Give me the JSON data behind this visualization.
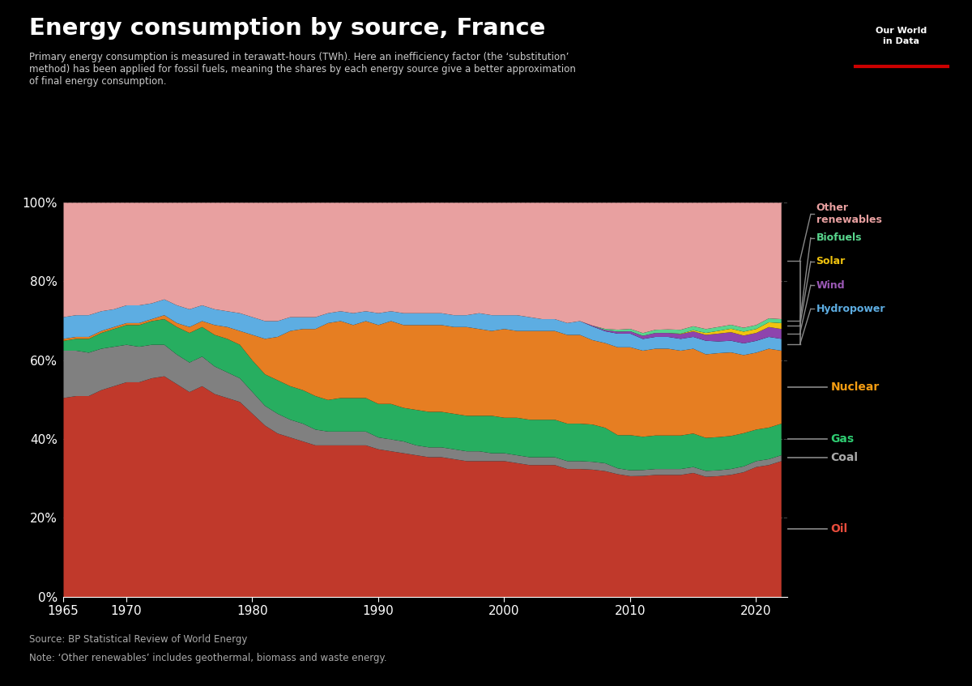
{
  "title": "Energy consumption by source, France",
  "subtitle": "Primary energy consumption is measured in terawatt-hours (TWh). Here an inefficiency factor (the ‘substitution’\nmethod) has been applied for fossil fuels, meaning the shares by each energy source give a better approximation\nof final energy consumption.",
  "source_text": "Source: BP Statistical Review of World Energy",
  "note_text": "Note: ‘Other renewables’ includes geothermal, biomass and waste energy.",
  "background_color": "#000000",
  "text_color": "#ffffff",
  "years": [
    1965,
    1966,
    1967,
    1968,
    1969,
    1970,
    1971,
    1972,
    1973,
    1974,
    1975,
    1976,
    1977,
    1978,
    1979,
    1980,
    1981,
    1982,
    1983,
    1984,
    1985,
    1986,
    1987,
    1988,
    1989,
    1990,
    1991,
    1992,
    1993,
    1994,
    1995,
    1996,
    1997,
    1998,
    1999,
    2000,
    2001,
    2002,
    2003,
    2004,
    2005,
    2006,
    2007,
    2008,
    2009,
    2010,
    2011,
    2012,
    2013,
    2014,
    2015,
    2016,
    2017,
    2018,
    2019,
    2020,
    2021,
    2022
  ],
  "series": {
    "Oil": {
      "color": "#c0392b",
      "label_color": "#e74c3c",
      "values": [
        50.5,
        51.0,
        51.0,
        52.5,
        53.5,
        54.5,
        54.5,
        55.5,
        56.0,
        54.0,
        52.0,
        53.5,
        51.5,
        50.5,
        49.5,
        46.5,
        43.5,
        41.5,
        40.5,
        39.5,
        38.5,
        38.5,
        38.5,
        38.5,
        38.5,
        37.5,
        37.0,
        36.5,
        36.0,
        35.5,
        35.5,
        35.0,
        34.5,
        34.5,
        34.5,
        34.5,
        34.0,
        33.5,
        33.5,
        33.5,
        32.5,
        32.5,
        32.5,
        32.0,
        31.5,
        31.0,
        31.0,
        31.0,
        31.0,
        31.0,
        31.5,
        31.0,
        31.0,
        31.5,
        32.0,
        33.0,
        33.5,
        34.5
      ]
    },
    "Coal": {
      "color": "#808080",
      "label_color": "#aaaaaa",
      "values": [
        12.0,
        11.5,
        11.0,
        10.5,
        10.0,
        9.5,
        9.0,
        8.5,
        8.0,
        7.5,
        7.5,
        7.5,
        7.0,
        6.5,
        6.0,
        5.5,
        5.0,
        5.0,
        4.5,
        4.5,
        4.0,
        3.5,
        3.5,
        3.5,
        3.5,
        3.0,
        3.0,
        3.0,
        2.5,
        2.5,
        2.5,
        2.5,
        2.5,
        2.5,
        2.0,
        2.0,
        2.0,
        2.0,
        2.0,
        2.0,
        2.0,
        2.0,
        2.0,
        2.0,
        1.5,
        1.5,
        1.5,
        1.5,
        1.5,
        1.5,
        1.5,
        1.5,
        1.5,
        1.5,
        1.5,
        1.5,
        1.5,
        1.5
      ]
    },
    "Gas": {
      "color": "#27ae60",
      "label_color": "#2ecc71",
      "values": [
        2.5,
        3.0,
        3.5,
        4.0,
        4.5,
        5.0,
        5.5,
        6.0,
        6.5,
        7.0,
        7.5,
        7.5,
        8.0,
        8.5,
        8.5,
        8.0,
        8.0,
        8.5,
        8.5,
        8.5,
        8.5,
        8.0,
        8.5,
        8.5,
        8.5,
        8.5,
        9.0,
        8.5,
        9.0,
        9.0,
        9.0,
        9.0,
        9.0,
        9.0,
        9.5,
        9.0,
        9.5,
        9.5,
        9.5,
        9.5,
        9.5,
        9.5,
        9.5,
        9.0,
        8.5,
        9.0,
        8.5,
        8.5,
        8.5,
        8.5,
        8.5,
        8.5,
        8.5,
        8.5,
        8.5,
        8.0,
        8.0,
        8.0
      ]
    },
    "Nuclear": {
      "color": "#e67e22",
      "label_color": "#f39c12",
      "values": [
        0.5,
        0.5,
        0.5,
        0.5,
        0.5,
        0.5,
        0.5,
        0.5,
        1.0,
        1.0,
        1.5,
        1.5,
        2.5,
        3.0,
        3.5,
        6.5,
        9.0,
        11.0,
        14.0,
        15.5,
        17.0,
        19.5,
        19.5,
        18.5,
        19.5,
        20.0,
        21.0,
        21.0,
        21.5,
        22.0,
        22.0,
        22.0,
        22.5,
        22.0,
        21.5,
        22.5,
        22.0,
        22.5,
        22.5,
        22.5,
        22.5,
        22.5,
        21.5,
        21.5,
        22.5,
        22.5,
        22.0,
        22.0,
        22.0,
        21.5,
        21.5,
        21.5,
        21.5,
        21.5,
        20.0,
        19.5,
        20.0,
        18.5
      ]
    },
    "Hydropower": {
      "color": "#5dade2",
      "label_color": "#5dade2",
      "values": [
        5.5,
        5.5,
        5.5,
        5.0,
        4.5,
        4.5,
        4.5,
        4.0,
        4.0,
        4.5,
        4.5,
        4.0,
        4.0,
        4.0,
        4.5,
        4.5,
        4.5,
        4.0,
        3.5,
        3.0,
        3.0,
        2.5,
        2.5,
        3.0,
        2.5,
        3.0,
        2.5,
        3.0,
        3.0,
        3.0,
        3.0,
        3.0,
        3.0,
        4.0,
        4.0,
        3.5,
        4.0,
        3.5,
        3.0,
        3.0,
        3.0,
        3.5,
        3.5,
        3.0,
        3.5,
        3.5,
        3.0,
        3.0,
        3.0,
        3.0,
        3.0,
        3.5,
        3.0,
        3.0,
        3.0,
        3.0,
        3.0,
        3.0
      ]
    },
    "Wind": {
      "color": "#8e44ad",
      "label_color": "#9b59b6",
      "values": [
        0,
        0,
        0,
        0,
        0,
        0,
        0,
        0,
        0,
        0,
        0,
        0,
        0,
        0,
        0,
        0,
        0,
        0,
        0,
        0,
        0,
        0,
        0,
        0,
        0,
        0,
        0,
        0,
        0,
        0,
        0,
        0,
        0,
        0,
        0,
        0,
        0,
        0,
        0,
        0,
        0,
        0,
        0.2,
        0.3,
        0.5,
        0.6,
        0.8,
        1.0,
        1.0,
        1.2,
        1.4,
        1.5,
        2.0,
        2.2,
        2.0,
        2.0,
        2.5,
        2.5
      ]
    },
    "Solar": {
      "color": "#f1c40f",
      "label_color": "#f1c40f",
      "values": [
        0,
        0,
        0,
        0,
        0,
        0,
        0,
        0,
        0,
        0,
        0,
        0,
        0,
        0,
        0,
        0,
        0,
        0,
        0,
        0,
        0,
        0,
        0,
        0,
        0,
        0,
        0,
        0,
        0,
        0,
        0,
        0,
        0,
        0,
        0,
        0,
        0,
        0,
        0,
        0,
        0,
        0,
        0,
        0,
        0,
        0,
        0,
        0,
        0,
        0.1,
        0.3,
        0.5,
        0.7,
        0.9,
        1.0,
        1.0,
        1.2,
        1.5
      ]
    },
    "Biofuels": {
      "color": "#58d68d",
      "label_color": "#58d68d",
      "values": [
        0,
        0,
        0,
        0,
        0,
        0,
        0,
        0,
        0,
        0,
        0,
        0,
        0,
        0,
        0,
        0,
        0,
        0,
        0,
        0,
        0,
        0,
        0,
        0,
        0,
        0,
        0,
        0,
        0,
        0,
        0,
        0,
        0,
        0,
        0,
        0,
        0,
        0,
        0,
        0,
        0,
        0,
        0,
        0.3,
        0.5,
        0.6,
        0.7,
        0.8,
        0.9,
        1.0,
        1.0,
        1.0,
        1.0,
        1.0,
        1.0,
        1.0,
        1.0,
        1.0
      ]
    },
    "Other renewables": {
      "color": "#e8a0a0",
      "label_color": "#e8a0a0",
      "values": [
        29,
        28.5,
        28.5,
        27.5,
        27.0,
        26.0,
        26.0,
        25.5,
        24.5,
        26.0,
        27.0,
        26.0,
        27.0,
        27.5,
        28.0,
        29.0,
        30.0,
        30.0,
        29.0,
        29.0,
        29.0,
        28.0,
        27.5,
        28.0,
        27.5,
        28.0,
        27.5,
        28.0,
        28.0,
        28.0,
        28.0,
        28.5,
        28.5,
        28.0,
        28.5,
        28.5,
        28.5,
        29.0,
        29.5,
        29.5,
        30.5,
        30.0,
        31.3,
        32.0,
        32.5,
        32.3,
        33.3,
        32.2,
        32.1,
        32.2,
        31.3,
        32.5,
        31.8,
        31.4,
        32.0,
        31.0,
        29.3,
        29.5
      ]
    }
  },
  "owid_logo": {
    "text": "Our World\nin Data",
    "bg_color": "#003366",
    "text_color": "#ffffff",
    "line_color": "#cc0000"
  }
}
